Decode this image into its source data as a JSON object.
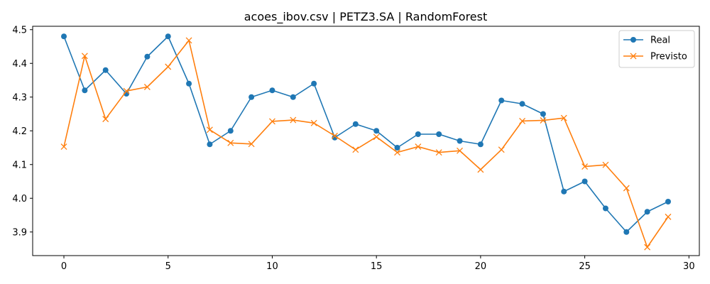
{
  "chart_data": {
    "type": "line",
    "title": "acoes_ibov.csv | PETZ3.SA | RandomForest",
    "xlabel": "",
    "ylabel": "",
    "xlim": [
      -1.5,
      30.5
    ],
    "ylim": [
      3.83,
      4.51
    ],
    "x_ticks": [
      0,
      5,
      10,
      15,
      20,
      25,
      30
    ],
    "x_tick_labels": [
      "0",
      "5",
      "10",
      "15",
      "20",
      "25",
      "30"
    ],
    "y_ticks": [
      3.9,
      4.0,
      4.1,
      4.2,
      4.3,
      4.4,
      4.5
    ],
    "y_tick_labels": [
      "3.9",
      "4.0",
      "4.1",
      "4.2",
      "4.3",
      "4.4",
      "4.5"
    ],
    "grid": false,
    "legend_position": "top-right",
    "x": [
      0,
      1,
      2,
      3,
      4,
      5,
      6,
      7,
      8,
      9,
      10,
      11,
      12,
      13,
      14,
      15,
      16,
      17,
      18,
      19,
      20,
      21,
      22,
      23,
      24,
      25,
      26,
      27,
      28,
      29
    ],
    "series": [
      {
        "name": "Real",
        "color": "#1f77b4",
        "marker": "circle",
        "values": [
          4.48,
          4.32,
          4.38,
          4.31,
          4.42,
          4.48,
          4.34,
          4.16,
          4.2,
          4.3,
          4.32,
          4.3,
          4.34,
          4.18,
          4.22,
          4.2,
          4.15,
          4.19,
          4.19,
          4.17,
          4.16,
          4.29,
          4.28,
          4.25,
          4.02,
          4.05,
          3.97,
          3.9,
          3.96,
          3.99
        ]
      },
      {
        "name": "Previsto",
        "color": "#ff7f0e",
        "marker": "x",
        "values": [
          4.153,
          4.422,
          4.235,
          4.318,
          4.33,
          4.39,
          4.468,
          4.203,
          4.164,
          4.161,
          4.228,
          4.232,
          4.223,
          4.185,
          4.144,
          4.182,
          4.136,
          4.153,
          4.136,
          4.141,
          4.085,
          4.144,
          4.229,
          4.231,
          4.238,
          4.094,
          4.099,
          4.03,
          3.855,
          3.945
        ]
      }
    ]
  }
}
